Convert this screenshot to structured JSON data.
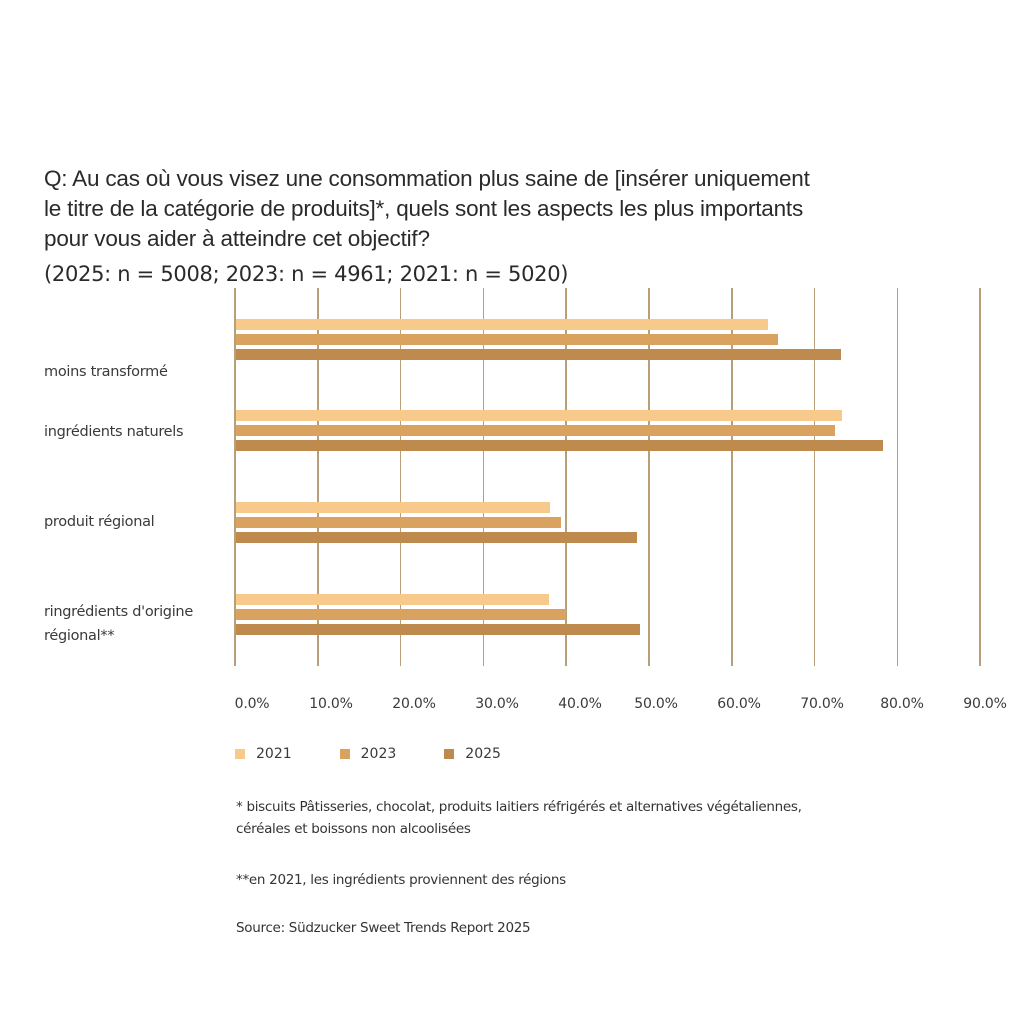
{
  "title": {
    "lines": [
      "Q: Au cas où vous visez une consommation plus saine de [insérer uniquement",
      "le titre de la catégorie de produits]*, quels sont les aspects les plus importants",
      "pour vous aider à atteindre cet objectif?"
    ],
    "sample_sizes": "(2025: n = 5008; 2023: n = 4961; 2021: n = 5020)"
  },
  "legend": [
    {
      "label": "2021",
      "color": "#F7C98B"
    },
    {
      "label": "2023",
      "color": "#D9A25E"
    },
    {
      "label": "2025",
      "color": "#BE8A4D"
    }
  ],
  "category_labels": [
    {
      "lines": [
        "moins transformé"
      ]
    },
    {
      "lines": [
        "ingrédients naturels"
      ]
    },
    {
      "lines": [
        "produit régional"
      ]
    },
    {
      "lines": [
        "ringrédients d'origine",
        "régional**"
      ]
    }
  ],
  "x_ticks": [
    "0.0%",
    "10.0%",
    "20.0%",
    "30.0%",
    "40.0%",
    "50.0%",
    "60.0%",
    "70.0%",
    "80.0%",
    "90.0%"
  ],
  "notes": {
    "footnote1_line1": "* biscuits Pâtisseries, chocolat, produits laitiers réfrigérés et alternatives végétaliennes,",
    "footnote1_line2": "céréales et boissons non alcoolisées",
    "footnote2": "**en 2021, les ingrédients proviennent des régions",
    "source": "Source: Südzucker Sweet Trends Report 2025"
  },
  "chart_data": {
    "type": "bar",
    "orientation": "horizontal",
    "title": "Q: Au cas où vous visez une consommation plus saine de [insérer uniquement le titre de la catégorie de produits]*, quels sont les aspects les plus importants pour vous aider à atteindre cet objectif? (2025: n = 5008; 2023: n = 4961; 2021: n = 5020)",
    "categories": [
      "moins transformé",
      "ingrédients naturels",
      "produit régional",
      "ringrédients d'origine régional**"
    ],
    "series": [
      {
        "name": "2021",
        "color": "#F7C98B",
        "values": [
          64.4,
          73.3,
          38.0,
          37.9
        ]
      },
      {
        "name": "2023",
        "color": "#D9A25E",
        "values": [
          65.6,
          72.5,
          39.4,
          40.0
        ]
      },
      {
        "name": "2025",
        "color": "#BE8A4D",
        "values": [
          73.2,
          78.3,
          48.6,
          48.9
        ]
      }
    ],
    "xlabel": "",
    "ylabel": "",
    "xlim": [
      0,
      90
    ],
    "x_tick_labels": [
      "0.0%",
      "10.0%",
      "20.0%",
      "30.0%",
      "40.0%",
      "50.0%",
      "60.0%",
      "70.0%",
      "80.0%",
      "90.0%"
    ],
    "grid": "vertical",
    "legend_position": "bottom-left",
    "footnotes": [
      "* biscuits Pâtisseries, chocolat, produits laitiers réfrigérés et alternatives végétaliennes, céréales et boissons non alcoolisées",
      "**en 2021, les ingrédients proviennent des régions"
    ],
    "source": "Source: Südzucker Sweet Trends Report 2025"
  }
}
